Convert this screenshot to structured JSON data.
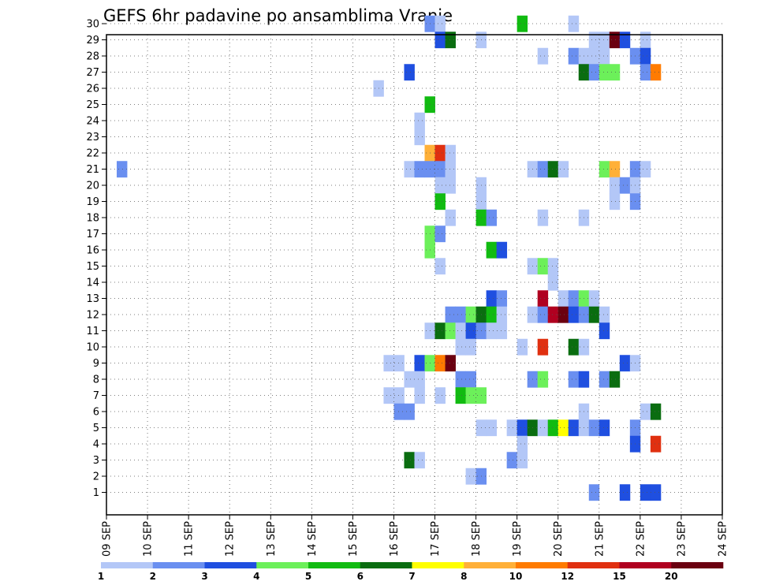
{
  "chart_data": {
    "type": "heatmap",
    "title": "GEFS 6hr padavine po ansamblima Vranje",
    "xlabel": "",
    "ylabel": "",
    "x_tick_labels": [
      "09 SEP",
      "10 SEP",
      "11 SEP",
      "12 SEP",
      "13 SEP",
      "14 SEP",
      "15 SEP",
      "16 SEP",
      "17 SEP",
      "18 SEP",
      "19 SEP",
      "20 SEP",
      "21 SEP",
      "22 SEP",
      "23 SEP",
      "24 SEP"
    ],
    "xlim": [
      0,
      60
    ],
    "y_members": [
      1,
      2,
      3,
      4,
      5,
      6,
      7,
      8,
      9,
      10,
      11,
      12,
      13,
      14,
      15,
      16,
      17,
      18,
      19,
      20,
      21,
      22,
      23,
      24,
      25,
      26,
      27,
      28,
      29,
      30
    ],
    "grid": true,
    "colorbar": {
      "placement": "bottom",
      "labels": [
        "1",
        "2",
        "3",
        "4",
        "5",
        "6",
        "7",
        "8",
        "10",
        "12",
        "15",
        "20"
      ],
      "colors": [
        "#b3c7f7",
        "#6a8ff0",
        "#1f4fe0",
        "#6cf05a",
        "#11bb11",
        "#0a6d10",
        "#ffff00",
        "#ffb038",
        "#ff7b00",
        "#e03010",
        "#b00020",
        "#6b0010"
      ]
    },
    "cells": [
      [
        31,
        30,
        1
      ],
      [
        32,
        30,
        0
      ],
      [
        40,
        30,
        4
      ],
      [
        45,
        30,
        0
      ],
      [
        32,
        29,
        2
      ],
      [
        33,
        29,
        5
      ],
      [
        36,
        29,
        0
      ],
      [
        47,
        29,
        0
      ],
      [
        48,
        29,
        0
      ],
      [
        49,
        29,
        11
      ],
      [
        50,
        29,
        2
      ],
      [
        52,
        29,
        0
      ],
      [
        42,
        28,
        0
      ],
      [
        45,
        28,
        1
      ],
      [
        46,
        28,
        0
      ],
      [
        47,
        28,
        0
      ],
      [
        48,
        28,
        0
      ],
      [
        51,
        28,
        1
      ],
      [
        52,
        28,
        2
      ],
      [
        29,
        27,
        2
      ],
      [
        46,
        27,
        5
      ],
      [
        47,
        27,
        1
      ],
      [
        48,
        27,
        3
      ],
      [
        49,
        27,
        3
      ],
      [
        52,
        27,
        1
      ],
      [
        53,
        27,
        8
      ],
      [
        26,
        26,
        0
      ],
      [
        31,
        25,
        4
      ],
      [
        30,
        24,
        0
      ],
      [
        30,
        23,
        0
      ],
      [
        31,
        22,
        7
      ],
      [
        32,
        22,
        9
      ],
      [
        33,
        22,
        0
      ],
      [
        1,
        21,
        1
      ],
      [
        29,
        21,
        0
      ],
      [
        30,
        21,
        1
      ],
      [
        31,
        21,
        1
      ],
      [
        32,
        21,
        1
      ],
      [
        33,
        21,
        0
      ],
      [
        41,
        21,
        0
      ],
      [
        42,
        21,
        1
      ],
      [
        43,
        21,
        5
      ],
      [
        44,
        21,
        0
      ],
      [
        48,
        21,
        3
      ],
      [
        49,
        21,
        7
      ],
      [
        51,
        21,
        1
      ],
      [
        52,
        21,
        0
      ],
      [
        32,
        20,
        0
      ],
      [
        33,
        20,
        0
      ],
      [
        36,
        20,
        0
      ],
      [
        49,
        20,
        0
      ],
      [
        50,
        20,
        1
      ],
      [
        51,
        20,
        0
      ],
      [
        32,
        19,
        4
      ],
      [
        36,
        19,
        0
      ],
      [
        49,
        19,
        0
      ],
      [
        51,
        19,
        1
      ],
      [
        33,
        18,
        0
      ],
      [
        36,
        18,
        4
      ],
      [
        37,
        18,
        1
      ],
      [
        42,
        18,
        0
      ],
      [
        46,
        18,
        0
      ],
      [
        31,
        17,
        3
      ],
      [
        32,
        17,
        1
      ],
      [
        31,
        16,
        3
      ],
      [
        37,
        16,
        4
      ],
      [
        38,
        16,
        2
      ],
      [
        32,
        15,
        0
      ],
      [
        41,
        15,
        0
      ],
      [
        42,
        15,
        3
      ],
      [
        43,
        15,
        0
      ],
      [
        43,
        14,
        0
      ],
      [
        37,
        13,
        2
      ],
      [
        38,
        13,
        1
      ],
      [
        42,
        13,
        10
      ],
      [
        44,
        13,
        0
      ],
      [
        45,
        13,
        1
      ],
      [
        46,
        13,
        3
      ],
      [
        47,
        13,
        0
      ],
      [
        33,
        12,
        1
      ],
      [
        34,
        12,
        1
      ],
      [
        35,
        12,
        3
      ],
      [
        36,
        12,
        5
      ],
      [
        37,
        12,
        4
      ],
      [
        38,
        12,
        0
      ],
      [
        41,
        12,
        0
      ],
      [
        42,
        12,
        1
      ],
      [
        43,
        12,
        10
      ],
      [
        44,
        12,
        11
      ],
      [
        45,
        12,
        2
      ],
      [
        46,
        12,
        1
      ],
      [
        47,
        12,
        5
      ],
      [
        48,
        12,
        0
      ],
      [
        31,
        11,
        0
      ],
      [
        32,
        11,
        5
      ],
      [
        33,
        11,
        3
      ],
      [
        34,
        11,
        0
      ],
      [
        35,
        11,
        2
      ],
      [
        36,
        11,
        1
      ],
      [
        37,
        11,
        0
      ],
      [
        38,
        11,
        0
      ],
      [
        48,
        11,
        2
      ],
      [
        34,
        10,
        0
      ],
      [
        35,
        10,
        0
      ],
      [
        40,
        10,
        0
      ],
      [
        42,
        10,
        9
      ],
      [
        45,
        10,
        5
      ],
      [
        46,
        10,
        0
      ],
      [
        27,
        9,
        0
      ],
      [
        28,
        9,
        0
      ],
      [
        30,
        9,
        2
      ],
      [
        31,
        9,
        3
      ],
      [
        32,
        9,
        8
      ],
      [
        33,
        9,
        11
      ],
      [
        50,
        9,
        2
      ],
      [
        51,
        9,
        0
      ],
      [
        29,
        8,
        0
      ],
      [
        30,
        8,
        0
      ],
      [
        34,
        8,
        1
      ],
      [
        35,
        8,
        1
      ],
      [
        41,
        8,
        1
      ],
      [
        42,
        8,
        3
      ],
      [
        45,
        8,
        1
      ],
      [
        46,
        8,
        2
      ],
      [
        48,
        8,
        1
      ],
      [
        49,
        8,
        5
      ],
      [
        27,
        7,
        0
      ],
      [
        28,
        7,
        0
      ],
      [
        30,
        7,
        0
      ],
      [
        32,
        7,
        0
      ],
      [
        34,
        7,
        4
      ],
      [
        35,
        7,
        3
      ],
      [
        36,
        7,
        3
      ],
      [
        28,
        6,
        1
      ],
      [
        29,
        6,
        1
      ],
      [
        46,
        6,
        0
      ],
      [
        52,
        6,
        0
      ],
      [
        53,
        6,
        5
      ],
      [
        36,
        5,
        0
      ],
      [
        37,
        5,
        0
      ],
      [
        39,
        5,
        0
      ],
      [
        40,
        5,
        2
      ],
      [
        41,
        5,
        5
      ],
      [
        42,
        5,
        0
      ],
      [
        43,
        5,
        4
      ],
      [
        44,
        5,
        6
      ],
      [
        45,
        5,
        2
      ],
      [
        46,
        5,
        0
      ],
      [
        47,
        5,
        1
      ],
      [
        48,
        5,
        2
      ],
      [
        51,
        5,
        1
      ],
      [
        40,
        4,
        0
      ],
      [
        51,
        4,
        2
      ],
      [
        53,
        4,
        9
      ],
      [
        29,
        3,
        5
      ],
      [
        30,
        3,
        0
      ],
      [
        39,
        3,
        1
      ],
      [
        40,
        3,
        0
      ],
      [
        35,
        2,
        0
      ],
      [
        36,
        2,
        1
      ],
      [
        47,
        1,
        1
      ],
      [
        50,
        1,
        2
      ],
      [
        52,
        1,
        2
      ],
      [
        53,
        1,
        2
      ]
    ]
  }
}
